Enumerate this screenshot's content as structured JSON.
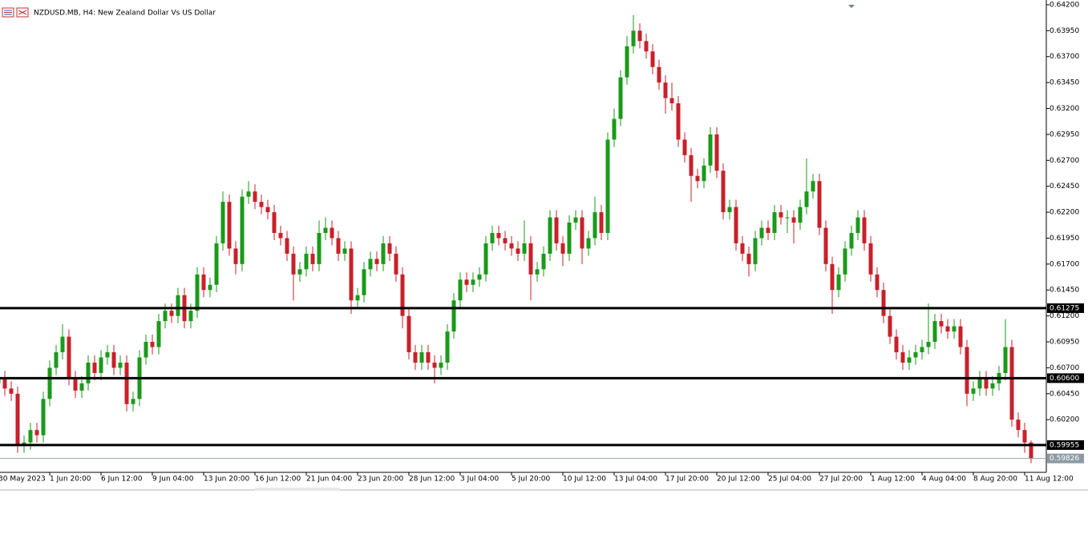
{
  "chart_data": {
    "type": "candlestick",
    "title": "NZDUSD.MB, H4:  New Zealand Dollar Vs US Dollar",
    "bull_color": "#1a9a1a",
    "bear_color": "#c8202a",
    "ylim": [
      0.59692,
      0.64246
    ],
    "yticks": [
      {
        "value": 0.642,
        "label": "0.64200"
      },
      {
        "value": 0.6395,
        "label": "0.63950"
      },
      {
        "value": 0.637,
        "label": "0.63700"
      },
      {
        "value": 0.6345,
        "label": "0.63450"
      },
      {
        "value": 0.632,
        "label": "0.63200"
      },
      {
        "value": 0.6295,
        "label": "0.62950"
      },
      {
        "value": 0.627,
        "label": "0.62700"
      },
      {
        "value": 0.6245,
        "label": "0.62450"
      },
      {
        "value": 0.622,
        "label": "0.62200"
      },
      {
        "value": 0.6195,
        "label": "0.61950"
      },
      {
        "value": 0.617,
        "label": "0.61700"
      },
      {
        "value": 0.6145,
        "label": "0.61450"
      },
      {
        "value": 0.612,
        "label": "0.61200"
      },
      {
        "value": 0.6095,
        "label": "0.60950"
      },
      {
        "value": 0.607,
        "label": "0.60700"
      },
      {
        "value": 0.6045,
        "label": "0.60450"
      },
      {
        "value": 0.602,
        "label": "0.60200"
      }
    ],
    "hlines": [
      0.61275,
      {
        "value": 0.606,
        "label": "0.60600"
      },
      0.59955
    ],
    "last_price": 0.59826,
    "categories": [
      "30 May 2023",
      null,
      null,
      null,
      null,
      null,
      null,
      null,
      "1 Jun 20:00",
      null,
      null,
      null,
      null,
      null,
      null,
      null,
      "6 Jun 12:00",
      null,
      null,
      null,
      null,
      null,
      null,
      null,
      "9 Jun 04:00",
      null,
      null,
      null,
      null,
      null,
      null,
      null,
      "13 Jun 20:00",
      null,
      null,
      null,
      null,
      null,
      null,
      null,
      "16 Jun 12:00",
      null,
      null,
      null,
      null,
      null,
      null,
      null,
      "21 Jun 04:00",
      null,
      null,
      null,
      null,
      null,
      null,
      null,
      "23 Jun 20:00",
      null,
      null,
      null,
      null,
      null,
      null,
      null,
      "28 Jun 12:00",
      null,
      null,
      null,
      null,
      null,
      null,
      null,
      "3 Jul 04:00",
      null,
      null,
      null,
      null,
      null,
      null,
      null,
      "5 Jul 20:00",
      null,
      null,
      null,
      null,
      null,
      null,
      null,
      "10 Jul 12:00",
      null,
      null,
      null,
      null,
      null,
      null,
      null,
      "13 Jul 04:00",
      null,
      null,
      null,
      null,
      null,
      null,
      null,
      "17 Jul 20:00",
      null,
      null,
      null,
      null,
      null,
      null,
      null,
      "20 Jul 12:00",
      null,
      null,
      null,
      null,
      null,
      null,
      null,
      "25 Jul 04:00",
      null,
      null,
      null,
      null,
      null,
      null,
      null,
      "27 Jul 20:00",
      null,
      null,
      null,
      null,
      null,
      null,
      null,
      "1 Aug 12:00",
      null,
      null,
      null,
      null,
      null,
      null,
      null,
      "4 Aug 04:00",
      null,
      null,
      null,
      null,
      null,
      null,
      null,
      "8 Aug 20:00",
      null,
      null,
      null,
      null,
      null,
      null,
      null,
      "11 Aug 12:00",
      null
    ],
    "ohlc": [
      [
        0.6055,
        0.6068,
        0.6048,
        0.606
      ],
      [
        0.606,
        0.6067,
        0.6043,
        0.605
      ],
      [
        0.605,
        0.6057,
        0.6038,
        0.6045
      ],
      [
        0.6045,
        0.6052,
        0.5988,
        0.5995
      ],
      [
        0.5995,
        0.6005,
        0.5988,
        0.5998
      ],
      [
        0.5998,
        0.6017,
        0.5991,
        0.601
      ],
      [
        0.601,
        0.6017,
        0.5998,
        0.6005
      ],
      [
        0.6005,
        0.6047,
        0.5998,
        0.604
      ],
      [
        0.604,
        0.6077,
        0.6033,
        0.607
      ],
      [
        0.607,
        0.6092,
        0.6063,
        0.6085
      ],
      [
        0.6085,
        0.6112,
        0.6078,
        0.61
      ],
      [
        0.61,
        0.6107,
        0.6053,
        0.606
      ],
      [
        0.606,
        0.6067,
        0.6041,
        0.6048
      ],
      [
        0.6048,
        0.6062,
        0.6041,
        0.6055
      ],
      [
        0.6055,
        0.6082,
        0.6048,
        0.6075
      ],
      [
        0.6075,
        0.6082,
        0.6058,
        0.6065
      ],
      [
        0.6065,
        0.6087,
        0.6058,
        0.608
      ],
      [
        0.608,
        0.6092,
        0.6073,
        0.6085
      ],
      [
        0.6085,
        0.6092,
        0.6063,
        0.607
      ],
      [
        0.607,
        0.6082,
        0.6063,
        0.6075
      ],
      [
        0.6075,
        0.6082,
        0.6028,
        0.6035
      ],
      [
        0.6035,
        0.6047,
        0.6028,
        0.604
      ],
      [
        0.604,
        0.6087,
        0.6033,
        0.608
      ],
      [
        0.608,
        0.6102,
        0.6073,
        0.6095
      ],
      [
        0.6095,
        0.6102,
        0.6083,
        0.609
      ],
      [
        0.609,
        0.6122,
        0.6083,
        0.6115
      ],
      [
        0.6115,
        0.6132,
        0.6108,
        0.6125
      ],
      [
        0.6125,
        0.6132,
        0.6113,
        0.612
      ],
      [
        0.612,
        0.6147,
        0.6113,
        0.614
      ],
      [
        0.614,
        0.6147,
        0.6108,
        0.6115
      ],
      [
        0.6115,
        0.6132,
        0.6108,
        0.6125
      ],
      [
        0.6125,
        0.6167,
        0.6118,
        0.616
      ],
      [
        0.616,
        0.6167,
        0.6138,
        0.6145
      ],
      [
        0.6145,
        0.6157,
        0.6138,
        0.615
      ],
      [
        0.615,
        0.6197,
        0.6143,
        0.619
      ],
      [
        0.619,
        0.624,
        0.6183,
        0.623
      ],
      [
        0.623,
        0.6237,
        0.6178,
        0.6185
      ],
      [
        0.6185,
        0.6192,
        0.616,
        0.617
      ],
      [
        0.617,
        0.6242,
        0.6163,
        0.6235
      ],
      [
        0.6235,
        0.625,
        0.6228,
        0.624
      ],
      [
        0.624,
        0.6247,
        0.6223,
        0.623
      ],
      [
        0.623,
        0.6237,
        0.6218,
        0.6225
      ],
      [
        0.6225,
        0.6232,
        0.6213,
        0.622
      ],
      [
        0.622,
        0.6227,
        0.6193,
        0.62
      ],
      [
        0.62,
        0.6207,
        0.6188,
        0.6195
      ],
      [
        0.6195,
        0.6202,
        0.6173,
        0.618
      ],
      [
        0.618,
        0.6187,
        0.6135,
        0.616
      ],
      [
        0.616,
        0.6172,
        0.6153,
        0.6165
      ],
      [
        0.6165,
        0.6187,
        0.6158,
        0.618
      ],
      [
        0.618,
        0.6187,
        0.6163,
        0.617
      ],
      [
        0.617,
        0.6212,
        0.6163,
        0.62
      ],
      [
        0.62,
        0.6215,
        0.6193,
        0.6205
      ],
      [
        0.6205,
        0.6212,
        0.6188,
        0.6195
      ],
      [
        0.6195,
        0.6202,
        0.6173,
        0.618
      ],
      [
        0.618,
        0.6192,
        0.6173,
        0.6185
      ],
      [
        0.6185,
        0.6192,
        0.6122,
        0.6135
      ],
      [
        0.6135,
        0.6147,
        0.6128,
        0.614
      ],
      [
        0.614,
        0.6172,
        0.6133,
        0.6165
      ],
      [
        0.6165,
        0.6182,
        0.6158,
        0.6175
      ],
      [
        0.6175,
        0.6182,
        0.6163,
        0.617
      ],
      [
        0.617,
        0.6197,
        0.6163,
        0.619
      ],
      [
        0.619,
        0.6197,
        0.6173,
        0.618
      ],
      [
        0.618,
        0.6187,
        0.6153,
        0.616
      ],
      [
        0.616,
        0.6167,
        0.6108,
        0.612
      ],
      [
        0.612,
        0.6127,
        0.6078,
        0.6085
      ],
      [
        0.6085,
        0.6092,
        0.6068,
        0.6075
      ],
      [
        0.6075,
        0.6092,
        0.6068,
        0.6085
      ],
      [
        0.6085,
        0.6092,
        0.6068,
        0.6075
      ],
      [
        0.6075,
        0.6082,
        0.6055,
        0.607
      ],
      [
        0.607,
        0.6082,
        0.6063,
        0.6075
      ],
      [
        0.6075,
        0.6112,
        0.6068,
        0.6105
      ],
      [
        0.6105,
        0.6142,
        0.6098,
        0.6135
      ],
      [
        0.6135,
        0.6162,
        0.6128,
        0.6155
      ],
      [
        0.6155,
        0.6162,
        0.6143,
        0.615
      ],
      [
        0.615,
        0.6162,
        0.6143,
        0.6155
      ],
      [
        0.6155,
        0.6167,
        0.6148,
        0.616
      ],
      [
        0.616,
        0.6197,
        0.6153,
        0.619
      ],
      [
        0.619,
        0.6207,
        0.6183,
        0.62
      ],
      [
        0.62,
        0.6207,
        0.6188,
        0.6195
      ],
      [
        0.6195,
        0.6202,
        0.6183,
        0.619
      ],
      [
        0.619,
        0.6197,
        0.6178,
        0.6185
      ],
      [
        0.6185,
        0.6192,
        0.6173,
        0.618
      ],
      [
        0.618,
        0.6212,
        0.6173,
        0.619
      ],
      [
        0.619,
        0.6197,
        0.6135,
        0.616
      ],
      [
        0.616,
        0.6172,
        0.6153,
        0.6165
      ],
      [
        0.6165,
        0.6187,
        0.6158,
        0.618
      ],
      [
        0.618,
        0.6222,
        0.6173,
        0.6215
      ],
      [
        0.6215,
        0.6222,
        0.6183,
        0.619
      ],
      [
        0.619,
        0.6197,
        0.6168,
        0.618
      ],
      [
        0.618,
        0.6217,
        0.6173,
        0.621
      ],
      [
        0.621,
        0.6222,
        0.6203,
        0.6215
      ],
      [
        0.6215,
        0.6222,
        0.617,
        0.6185
      ],
      [
        0.6185,
        0.6202,
        0.6178,
        0.6195
      ],
      [
        0.6195,
        0.6235,
        0.6188,
        0.622
      ],
      [
        0.622,
        0.6227,
        0.6193,
        0.62
      ],
      [
        0.62,
        0.6297,
        0.6193,
        0.629
      ],
      [
        0.629,
        0.632,
        0.6283,
        0.631
      ],
      [
        0.631,
        0.6357,
        0.6303,
        0.635
      ],
      [
        0.635,
        0.639,
        0.6343,
        0.638
      ],
      [
        0.638,
        0.641,
        0.6373,
        0.6395
      ],
      [
        0.6395,
        0.6402,
        0.6378,
        0.6385
      ],
      [
        0.6385,
        0.6392,
        0.6368,
        0.6375
      ],
      [
        0.6375,
        0.6382,
        0.6353,
        0.636
      ],
      [
        0.636,
        0.6367,
        0.6338,
        0.6345
      ],
      [
        0.6345,
        0.6352,
        0.6315,
        0.633
      ],
      [
        0.633,
        0.6345,
        0.6318,
        0.6325
      ],
      [
        0.6325,
        0.6332,
        0.6283,
        0.629
      ],
      [
        0.629,
        0.6297,
        0.6268,
        0.6275
      ],
      [
        0.6275,
        0.6282,
        0.623,
        0.6255
      ],
      [
        0.6255,
        0.6262,
        0.6243,
        0.625
      ],
      [
        0.625,
        0.6272,
        0.6243,
        0.6265
      ],
      [
        0.6265,
        0.6302,
        0.6258,
        0.6295
      ],
      [
        0.6295,
        0.6302,
        0.6253,
        0.626
      ],
      [
        0.626,
        0.6267,
        0.6213,
        0.622
      ],
      [
        0.622,
        0.6232,
        0.6213,
        0.6225
      ],
      [
        0.6225,
        0.6232,
        0.6183,
        0.619
      ],
      [
        0.619,
        0.6197,
        0.6173,
        0.618
      ],
      [
        0.618,
        0.6187,
        0.6158,
        0.617
      ],
      [
        0.617,
        0.6202,
        0.6163,
        0.6195
      ],
      [
        0.6195,
        0.6212,
        0.6188,
        0.6205
      ],
      [
        0.6205,
        0.6212,
        0.6193,
        0.62
      ],
      [
        0.62,
        0.6227,
        0.6193,
        0.622
      ],
      [
        0.622,
        0.6227,
        0.6208,
        0.6215
      ],
      [
        0.6215,
        0.6222,
        0.62,
        0.6215
      ],
      [
        0.6215,
        0.6222,
        0.619,
        0.621
      ],
      [
        0.621,
        0.6232,
        0.6203,
        0.6225
      ],
      [
        0.6225,
        0.6272,
        0.6218,
        0.624
      ],
      [
        0.624,
        0.6257,
        0.6233,
        0.625
      ],
      [
        0.625,
        0.6257,
        0.6198,
        0.6205
      ],
      [
        0.6205,
        0.6212,
        0.6163,
        0.617
      ],
      [
        0.617,
        0.6177,
        0.6122,
        0.6145
      ],
      [
        0.6145,
        0.6167,
        0.6138,
        0.616
      ],
      [
        0.616,
        0.6192,
        0.6153,
        0.6185
      ],
      [
        0.6185,
        0.6207,
        0.6178,
        0.62
      ],
      [
        0.62,
        0.6222,
        0.6193,
        0.6215
      ],
      [
        0.6215,
        0.6222,
        0.6183,
        0.619
      ],
      [
        0.619,
        0.6197,
        0.6153,
        0.616
      ],
      [
        0.616,
        0.6167,
        0.6138,
        0.6145
      ],
      [
        0.6145,
        0.6152,
        0.6113,
        0.612
      ],
      [
        0.612,
        0.6127,
        0.6093,
        0.61
      ],
      [
        0.61,
        0.6107,
        0.6078,
        0.6085
      ],
      [
        0.6085,
        0.6092,
        0.6068,
        0.6075
      ],
      [
        0.6075,
        0.6087,
        0.6068,
        0.608
      ],
      [
        0.608,
        0.6092,
        0.6073,
        0.6085
      ],
      [
        0.6085,
        0.6097,
        0.6078,
        0.609
      ],
      [
        0.609,
        0.6132,
        0.6083,
        0.6095
      ],
      [
        0.6095,
        0.6122,
        0.6088,
        0.6115
      ],
      [
        0.6115,
        0.6122,
        0.6103,
        0.611
      ],
      [
        0.611,
        0.6117,
        0.6098,
        0.6105
      ],
      [
        0.6105,
        0.6117,
        0.6098,
        0.611
      ],
      [
        0.611,
        0.6117,
        0.6083,
        0.609
      ],
      [
        0.609,
        0.6097,
        0.6033,
        0.6045
      ],
      [
        0.6045,
        0.6057,
        0.6038,
        0.605
      ],
      [
        0.605,
        0.6067,
        0.6043,
        0.606
      ],
      [
        0.606,
        0.6067,
        0.6043,
        0.605
      ],
      [
        0.605,
        0.6062,
        0.6043,
        0.6055
      ],
      [
        0.6055,
        0.6072,
        0.6048,
        0.6065
      ],
      [
        0.6065,
        0.6117,
        0.6058,
        0.609
      ],
      [
        0.609,
        0.6097,
        0.6013,
        0.602
      ],
      [
        0.602,
        0.6027,
        0.6003,
        0.601
      ],
      [
        0.601,
        0.6017,
        0.5988,
        0.5998
      ],
      [
        0.5998,
        0.6,
        0.5978,
        0.59826
      ]
    ]
  }
}
